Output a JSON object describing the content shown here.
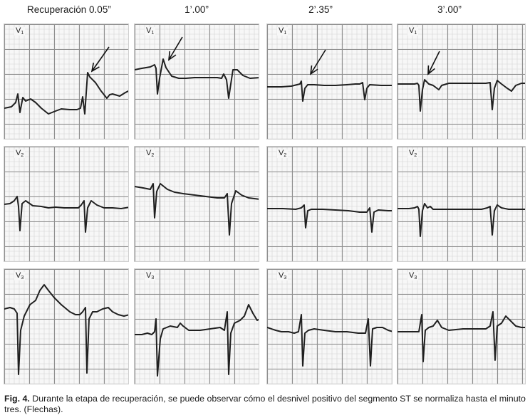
{
  "figure": {
    "column_titles": [
      "Recuperación 0.05”",
      "1’.00”",
      "2’.35”",
      "3’.00”"
    ],
    "lead_letter": "V",
    "row_leads": [
      "1",
      "2",
      "3"
    ],
    "caption_label": "Fig. 4.",
    "caption_text": " Durante la etapa de recuperación, se puede observar cómo el desnivel positivo del segmento ST se normaliza hasta el minuto tres. (Flechas).",
    "colors": {
      "grid": "#8f8f8f",
      "minor_grid": "#d3d3d3",
      "trace": "#202020",
      "background": "#f7f7f7"
    }
  }
}
